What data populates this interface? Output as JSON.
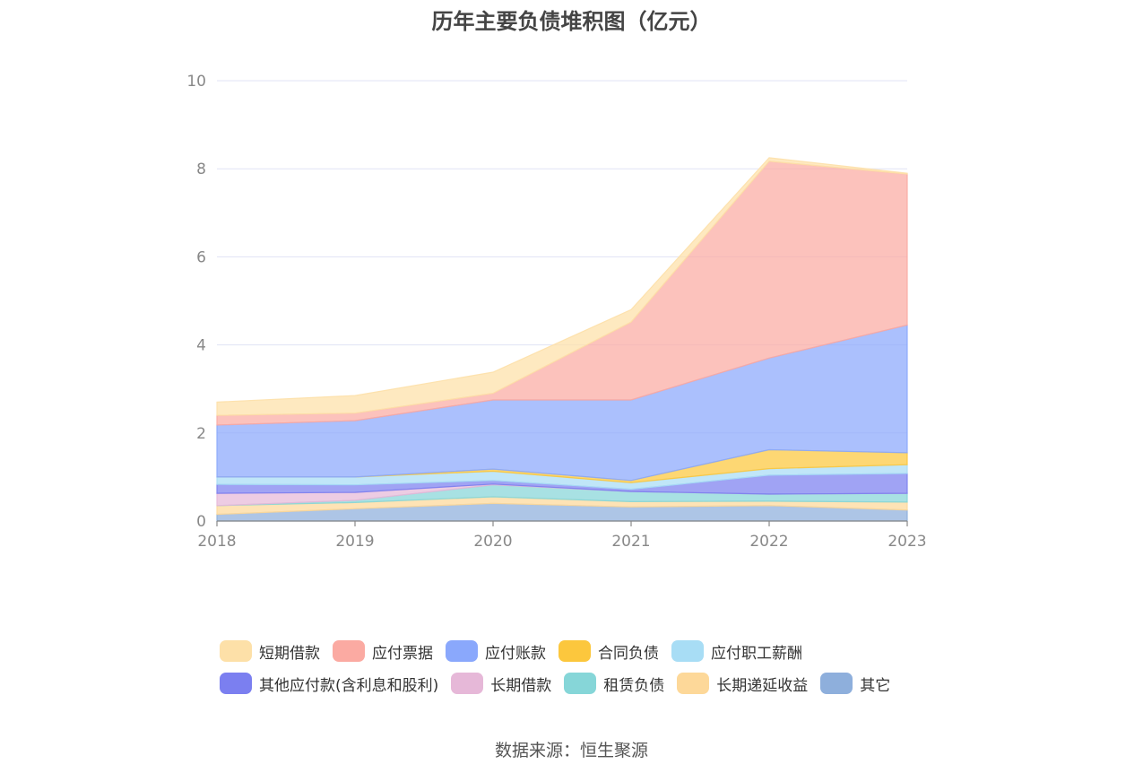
{
  "chart_data": {
    "type": "area",
    "stacked": true,
    "title": "历年主要负债堆积图（亿元）",
    "x": [
      "2018",
      "2019",
      "2020",
      "2021",
      "2022",
      "2023"
    ],
    "ylim": [
      0,
      10
    ],
    "yticks": [
      "0",
      "2",
      "4",
      "6",
      "8",
      "10"
    ],
    "grid": true,
    "legend_position": "bottom",
    "series": [
      {
        "name": "其它",
        "color": "#8eafdc",
        "values": [
          0.15,
          0.28,
          0.4,
          0.32,
          0.35,
          0.25
        ]
      },
      {
        "name": "长期递延收益",
        "color": "#fdd899",
        "values": [
          0.2,
          0.14,
          0.15,
          0.12,
          0.1,
          0.18
        ]
      },
      {
        "name": "租赁负债",
        "color": "#86d6d8",
        "values": [
          0.0,
          0.05,
          0.27,
          0.23,
          0.16,
          0.2
        ]
      },
      {
        "name": "长期借款",
        "color": "#e6b8d8",
        "values": [
          0.28,
          0.18,
          0.02,
          0.0,
          0.0,
          0.0
        ]
      },
      {
        "name": "其他应付款(含利息和股利)",
        "color": "#7b7ff0",
        "values": [
          0.2,
          0.17,
          0.08,
          0.05,
          0.43,
          0.45
        ]
      },
      {
        "name": "应付职工薪酬",
        "color": "#a8ddf5",
        "values": [
          0.17,
          0.18,
          0.21,
          0.15,
          0.15,
          0.2
        ]
      },
      {
        "name": "合同负债",
        "color": "#fcc73d",
        "values": [
          0.0,
          0.0,
          0.05,
          0.05,
          0.43,
          0.27
        ]
      },
      {
        "name": "应付账款",
        "color": "#8aa8fc",
        "values": [
          1.18,
          1.28,
          1.57,
          1.83,
          2.08,
          2.9
        ]
      },
      {
        "name": "应付票据",
        "color": "#fbaaa2",
        "values": [
          0.22,
          0.17,
          0.15,
          1.77,
          4.47,
          3.43
        ]
      },
      {
        "name": "短期借款",
        "color": "#fde0a8",
        "values": [
          0.3,
          0.4,
          0.48,
          0.28,
          0.08,
          0.02
        ]
      }
    ],
    "legend_order": [
      [
        "短期借款",
        "应付票据",
        "应付账款",
        "合同负债",
        "应付职工薪酬"
      ],
      [
        "其他应付款(含利息和股利)",
        "长期借款",
        "租赁负债",
        "长期递延收益",
        "其它"
      ]
    ]
  },
  "source_text": "数据来源：恒生聚源"
}
